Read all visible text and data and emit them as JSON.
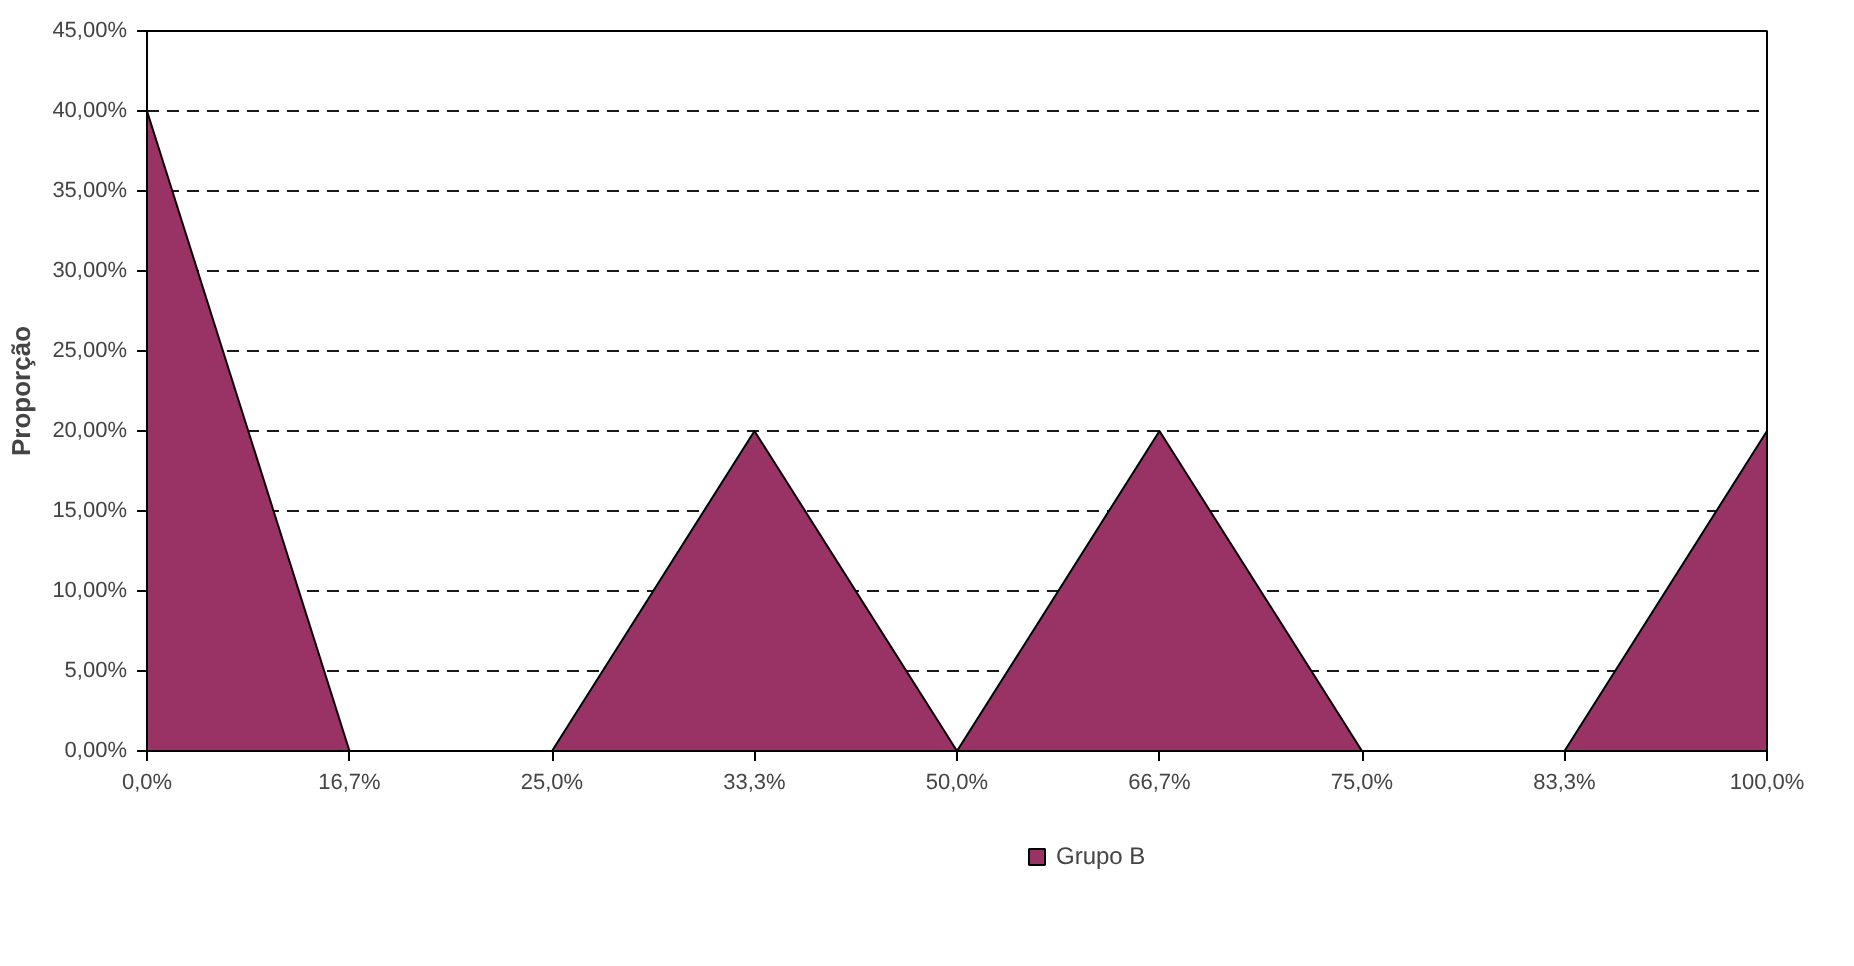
{
  "chart_data": {
    "type": "area",
    "ylabel": "Proporção",
    "categories": [
      "0,0%",
      "16,7%",
      "25,0%",
      "33,3%",
      "50,0%",
      "66,7%",
      "75,0%",
      "83,3%",
      "100,0%"
    ],
    "series": [
      {
        "name": "Grupo B",
        "color": "#993366",
        "values": [
          40,
          0,
          0,
          20,
          0,
          20,
          0,
          0,
          20
        ]
      }
    ],
    "ylim": [
      0,
      45
    ],
    "yticks": [
      {
        "value": 0,
        "label": "0,00%"
      },
      {
        "value": 5,
        "label": "5,00%"
      },
      {
        "value": 10,
        "label": "10,00%"
      },
      {
        "value": 15,
        "label": "15,00%"
      },
      {
        "value": 20,
        "label": "20,00%"
      },
      {
        "value": 25,
        "label": "25,00%"
      },
      {
        "value": 30,
        "label": "30,00%"
      },
      {
        "value": 35,
        "label": "35,00%"
      },
      {
        "value": 40,
        "label": "40,00%"
      },
      {
        "value": 45,
        "label": "45,00%"
      }
    ],
    "grid": "y",
    "legend": "bottom"
  }
}
